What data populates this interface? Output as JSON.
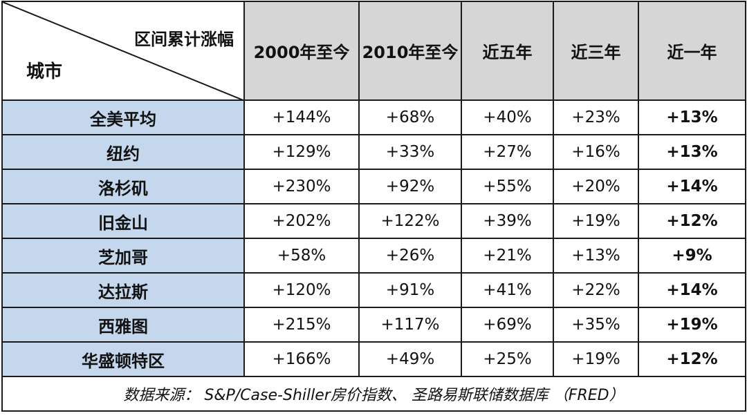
{
  "table": {
    "corner_top": "区间累计涨幅",
    "corner_bottom": "城市",
    "columns": [
      "2000年至今",
      "2010年至今",
      "近五年",
      "近三年",
      "近一年"
    ],
    "rows": [
      {
        "city": "全美平均",
        "values": [
          "+144%",
          "+68%",
          "+40%",
          "+23%",
          "+13%"
        ]
      },
      {
        "city": "纽约",
        "values": [
          "+129%",
          "+33%",
          "+27%",
          "+16%",
          "+13%"
        ]
      },
      {
        "city": "洛杉矶",
        "values": [
          "+230%",
          "+92%",
          "+55%",
          "+20%",
          "+14%"
        ]
      },
      {
        "city": "旧金山",
        "values": [
          "+202%",
          "+122%",
          "+39%",
          "+19%",
          "+12%"
        ]
      },
      {
        "city": "芝加哥",
        "values": [
          "+58%",
          "+26%",
          "+21%",
          "+13%",
          "+9%"
        ]
      },
      {
        "city": "达拉斯",
        "values": [
          "+120%",
          "+91%",
          "+41%",
          "+22%",
          "+14%"
        ]
      },
      {
        "city": "西雅图",
        "values": [
          "+215%",
          "+117%",
          "+69%",
          "+35%",
          "+19%"
        ]
      },
      {
        "city": "华盛顿特区",
        "values": [
          "+166%",
          "+49%",
          "+25%",
          "+19%",
          "+12%"
        ]
      }
    ],
    "footer": "数据来源： S&P/Case-Shiller房价指数、 圣路易斯联储数据库 （FRED）"
  },
  "colors": {
    "header_bg": "#d6d6d6",
    "city_bg": "#c4d7ec",
    "border": "#1a1a1a"
  }
}
